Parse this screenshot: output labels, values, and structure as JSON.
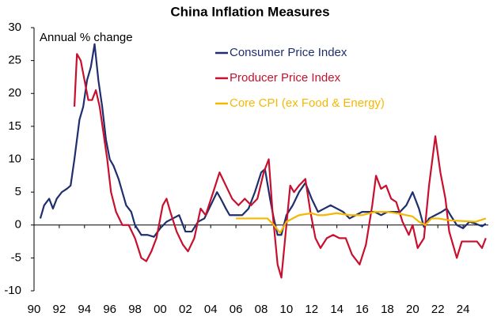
{
  "chart_data": {
    "type": "line",
    "title": "China Inflation Measures",
    "y_label": "Annual % change",
    "xlim": [
      1990,
      2026
    ],
    "xticks": [
      {
        "value": 1990,
        "label": "90"
      },
      {
        "value": 1992,
        "label": "92"
      },
      {
        "value": 1994,
        "label": "94"
      },
      {
        "value": 1996,
        "label": "96"
      },
      {
        "value": 1998,
        "label": "98"
      },
      {
        "value": 2000,
        "label": "00"
      },
      {
        "value": 2002,
        "label": "02"
      },
      {
        "value": 2004,
        "label": "04"
      },
      {
        "value": 2006,
        "label": "06"
      },
      {
        "value": 2008,
        "label": "08"
      },
      {
        "value": 2010,
        "label": "10"
      },
      {
        "value": 2012,
        "label": "12"
      },
      {
        "value": 2014,
        "label": "14"
      },
      {
        "value": 2016,
        "label": "16"
      },
      {
        "value": 2018,
        "label": "18"
      },
      {
        "value": 2020,
        "label": "20"
      },
      {
        "value": 2022,
        "label": "22"
      },
      {
        "value": 2024,
        "label": "24"
      }
    ],
    "ylim": [
      -10,
      30
    ],
    "yticks": [
      -10,
      -5,
      0,
      5,
      10,
      15,
      20,
      25,
      30
    ],
    "grid": false,
    "legend": "upper right",
    "series": [
      {
        "name": "Consumer Price Index",
        "color": "#1f2f6e",
        "x": [
          1990.5,
          1990.8,
          1991.2,
          1991.5,
          1991.8,
          1992.2,
          1992.6,
          1992.9,
          1993.2,
          1993.6,
          1993.9,
          1994.2,
          1994.5,
          1994.8,
          1995.1,
          1995.4,
          1995.7,
          1996.0,
          1996.3,
          1996.7,
          1997.0,
          1997.3,
          1997.7,
          1998.0,
          1998.5,
          1999.0,
          1999.5,
          2000.0,
          2000.5,
          2001.0,
          2001.5,
          2002.0,
          2002.5,
          2003.0,
          2003.5,
          2004.0,
          2004.5,
          2004.8,
          2005.2,
          2005.5,
          2006.0,
          2006.5,
          2007.0,
          2007.5,
          2008.0,
          2008.3,
          2008.7,
          2009.0,
          2009.3,
          2009.6,
          2010.0,
          2010.5,
          2011.0,
          2011.5,
          2012.0,
          2012.5,
          2013.0,
          2013.5,
          2014.0,
          2014.5,
          2015.0,
          2015.5,
          2016.0,
          2016.5,
          2017.0,
          2017.5,
          2018.0,
          2018.5,
          2019.0,
          2019.5,
          2020.0,
          2020.5,
          2020.9,
          2021.3,
          2021.8,
          2022.3,
          2022.7,
          2023.0,
          2023.5,
          2024.0,
          2024.5,
          2025.0,
          2025.5,
          2025.8
        ],
        "values": [
          1,
          3,
          4,
          2.5,
          4,
          5,
          5.5,
          6,
          10,
          16,
          18,
          22,
          24,
          27.5,
          22,
          18,
          13,
          10,
          9,
          7,
          5,
          3,
          2,
          0,
          -1.5,
          -1.5,
          -1.8,
          -0.5,
          0.5,
          1,
          1.5,
          -1,
          -1,
          0.5,
          1,
          3,
          5,
          4,
          2.5,
          1.5,
          1.5,
          1.5,
          2.5,
          5,
          8,
          8.5,
          4,
          1,
          -1.5,
          -1.5,
          1.5,
          3,
          5,
          6.4,
          4,
          2,
          2.5,
          3,
          2.5,
          2,
          1,
          1.5,
          2,
          2,
          2,
          1.5,
          2,
          2,
          2,
          3,
          5,
          2.5,
          -0.3,
          1,
          1.5,
          2,
          2.5,
          1.5,
          0,
          -0.5,
          0.5,
          0.2,
          -0.2,
          0.2
        ]
      },
      {
        "name": "Producer Price Index",
        "color": "#c8102e",
        "x": [
          1993.2,
          1993.4,
          1993.7,
          1994.0,
          1994.3,
          1994.6,
          1994.9,
          1995.2,
          1995.5,
          1995.8,
          1996.1,
          1996.5,
          1997.0,
          1997.5,
          1998.0,
          1998.5,
          1998.9,
          1999.3,
          1999.7,
          2000.2,
          2000.5,
          2000.8,
          2001.3,
          2001.8,
          2002.2,
          2002.7,
          2003.2,
          2003.6,
          2004.2,
          2004.7,
          2005.2,
          2005.7,
          2006.2,
          2006.7,
          2007.2,
          2007.7,
          2008.2,
          2008.6,
          2008.9,
          2009.3,
          2009.6,
          2009.9,
          2010.3,
          2010.6,
          2011.0,
          2011.5,
          2011.9,
          2012.3,
          2012.7,
          2013.2,
          2013.7,
          2014.2,
          2014.7,
          2015.2,
          2015.8,
          2016.3,
          2016.8,
          2017.1,
          2017.5,
          2017.9,
          2018.3,
          2018.7,
          2019.2,
          2019.7,
          2020.0,
          2020.4,
          2020.9,
          2021.3,
          2021.8,
          2022.2,
          2022.6,
          2022.9,
          2023.2,
          2023.5,
          2023.9,
          2024.3,
          2024.7,
          2025.1,
          2025.5,
          2025.8
        ],
        "values": [
          18,
          26,
          25,
          22,
          19,
          19,
          20.5,
          18,
          14,
          10,
          5,
          2,
          0,
          0,
          -2,
          -5,
          -5.5,
          -4,
          -2,
          3,
          4,
          2,
          -1,
          -3,
          -4,
          -2,
          2.5,
          1.5,
          5,
          8,
          6,
          4,
          3,
          4,
          3,
          4,
          8,
          10,
          2,
          -6,
          -8,
          -2,
          6,
          5,
          6,
          7,
          2,
          -2,
          -3.5,
          -2,
          -1.5,
          -2,
          -2,
          -4.5,
          -6,
          -3,
          3,
          7.5,
          5.5,
          6,
          4,
          3.5,
          0.5,
          -1.5,
          0,
          -3.5,
          -2,
          6,
          13.5,
          8,
          4,
          -1,
          -3,
          -5,
          -2.5,
          -2.5,
          -2.5,
          -2.5,
          -3.5,
          -2
        ]
      },
      {
        "name": "Core CPI (ex Food & Energy)",
        "color": "#f5b800",
        "x": [
          2006,
          2007,
          2008,
          2008.5,
          2009,
          2009.5,
          2010,
          2011,
          2012,
          2012.5,
          2013,
          2014,
          2015,
          2016,
          2017,
          2018,
          2019,
          2020,
          2020.5,
          2021,
          2021.5,
          2022,
          2023,
          2024,
          2025,
          2025.8
        ],
        "values": [
          1,
          1,
          1,
          1,
          0,
          -1.2,
          0.5,
          1.5,
          1.8,
          1.5,
          1.5,
          1.8,
          1.5,
          1.5,
          2,
          2,
          1.7,
          1.3,
          0.5,
          0,
          1,
          1,
          0.7,
          0.6,
          0.5,
          1
        ]
      }
    ]
  }
}
